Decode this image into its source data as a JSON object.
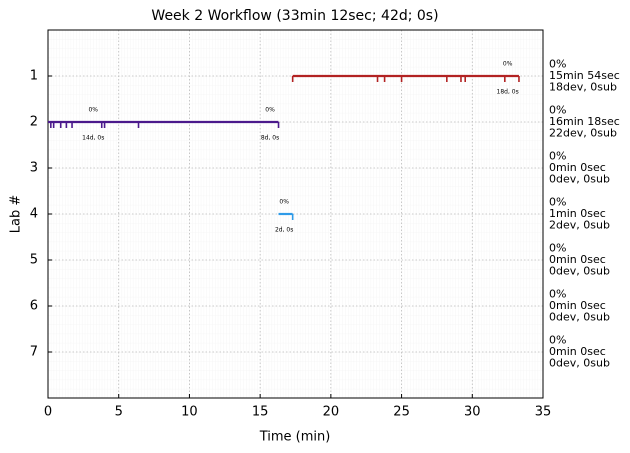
{
  "chart_data": {
    "type": "timeline",
    "title": "Week 2 Workflow (33min 12sec; 42d; 0s)",
    "x_label": "Time (min)",
    "y_label": "Lab #",
    "xlim": [
      0,
      35
    ],
    "xticks": [
      0,
      5,
      10,
      15,
      20,
      25,
      30,
      35
    ],
    "ylim": [
      8,
      0
    ],
    "yticks": [
      1,
      2,
      3,
      4,
      5,
      6,
      7
    ],
    "grid": true,
    "series": [
      {
        "lab": 1,
        "color": "#b22222",
        "start": 17.3,
        "end": 33.3,
        "events": [
          17.3,
          23.3,
          23.8,
          25.0,
          28.2,
          29.2,
          29.5,
          32.3,
          33.3
        ],
        "notes": [
          {
            "x": 32.5,
            "top": "0%",
            "bottom": "18d, 0s"
          }
        ]
      },
      {
        "lab": 2,
        "color": "#4b1a8c",
        "start": 0,
        "end": 16.3,
        "events": [
          0.2,
          0.4,
          0.9,
          1.3,
          1.7,
          3.8,
          4.0,
          6.4,
          16.3
        ],
        "notes": [
          {
            "x": 3.2,
            "top": "0%",
            "bottom": "14d, 0s"
          },
          {
            "x": 15.7,
            "top": "0%",
            "bottom": "8d, 0s"
          }
        ]
      },
      {
        "lab": 4,
        "color": "#2f9be8",
        "start": 16.3,
        "end": 17.3,
        "events": [
          17.3
        ],
        "notes": [
          {
            "x": 16.7,
            "top": "0%",
            "bottom": "2d, 0s"
          }
        ]
      }
    ],
    "side_labels": [
      {
        "lab": 1,
        "color": "#b22222",
        "lines": [
          "0%",
          "15min 54sec",
          "18dev, 0sub"
        ]
      },
      {
        "lab": 2,
        "color": "#4b1a8c",
        "lines": [
          "0%",
          "16min 18sec",
          "22dev, 0sub"
        ]
      },
      {
        "lab": 3,
        "color": "#191970",
        "lines": [
          "0%",
          "0min 0sec",
          "0dev, 0sub"
        ]
      },
      {
        "lab": 4,
        "color": "#2f9be8",
        "lines": [
          "0%",
          "1min 0sec",
          "2dev, 0sub"
        ]
      },
      {
        "lab": 5,
        "color": "#228b22",
        "lines": [
          "0%",
          "0min 0sec",
          "0dev, 0sub"
        ]
      },
      {
        "lab": 6,
        "color": "#e05a00",
        "lines": [
          "0%",
          "0min 0sec",
          "0dev, 0sub"
        ]
      },
      {
        "lab": 7,
        "color": "#000000",
        "lines": [
          "0%",
          "0min 0sec",
          "0dev, 0sub"
        ]
      }
    ]
  }
}
